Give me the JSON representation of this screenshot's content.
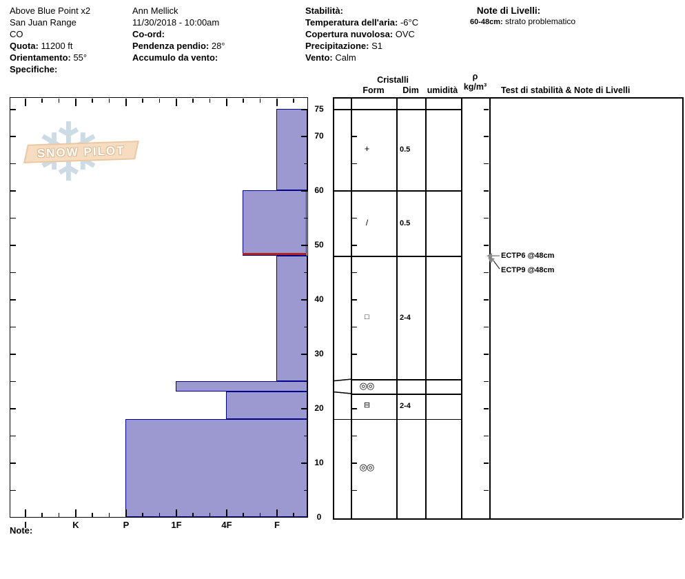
{
  "header": {
    "col1": [
      {
        "label": "",
        "value": "Above Blue Point x2"
      },
      {
        "label": "",
        "value": "San Juan Range"
      },
      {
        "label": "",
        "value": "CO"
      },
      {
        "label": "Quota:",
        "value": " 11200 ft"
      },
      {
        "label": "Orientamento:",
        "value": " 55°"
      },
      {
        "label": "Specifiche:",
        "value": ""
      }
    ],
    "col2": [
      {
        "label": "",
        "value": "Ann Mellick"
      },
      {
        "label": "",
        "value": "11/30/2018 - 10:00am"
      },
      {
        "label": "Co-ord:",
        "value": ""
      },
      {
        "label": "Pendenza pendio:",
        "value": " 28°"
      },
      {
        "label": "Accumulo da vento:",
        "value": ""
      }
    ],
    "col3": [
      {
        "label": "Stabilità:",
        "value": ""
      },
      {
        "label": "Temperatura dell'aria:",
        "value": " -6°C"
      },
      {
        "label": "Copertura nuvolosa:",
        "value": " OVC"
      },
      {
        "label": "Precipitazione:",
        "value": " S1"
      },
      {
        "label": "Vento:",
        "value": "  Calm"
      }
    ],
    "col4": {
      "title": "Note di Livelli:",
      "note_label": "60-48cm:",
      "note_value": " strato problematico"
    }
  },
  "watermark": {
    "text": "SNOW PILOT",
    "snowflake_icon": "❄"
  },
  "bottom_note_label": "Note:",
  "table_headers": {
    "cristalli": "Cristalli",
    "form": "Form",
    "dim": "Dim",
    "umidita": "umidità",
    "rho": "ρ",
    "rho_unit": "kg/m³",
    "tests": "Test di stabilità & Note di Livelli"
  },
  "chart_data": {
    "type": "snow-profile",
    "depth_axis": {
      "unit": "cm",
      "min": 0,
      "max": 75,
      "tick_step": 5,
      "label_ticks": [
        75,
        70,
        60,
        50,
        40,
        30,
        20,
        10,
        0
      ]
    },
    "hardness_axis": {
      "categories": [
        "I",
        "K",
        "P",
        "1F",
        "4F",
        "F"
      ],
      "minor_ticks_per_step": 3,
      "order_note": "hardness increases to the left"
    },
    "layers": [
      {
        "top_cm": 75,
        "bottom_cm": 60,
        "hardness": "F",
        "hardness_num": 1,
        "grain_form": "PP",
        "grain_symbol": "+",
        "size_mm": "0.5"
      },
      {
        "top_cm": 60,
        "bottom_cm": 48,
        "hardness": "4F-",
        "hardness_num": 1.67,
        "grain_form": "DF",
        "grain_symbol": "/",
        "size_mm": "0.5",
        "problem_layer_bottom": true
      },
      {
        "top_cm": 48,
        "bottom_cm": 25,
        "hardness": "F",
        "hardness_num": 1,
        "grain_form": "FC",
        "grain_symbol": "□",
        "size_mm": "2-4"
      },
      {
        "top_cm": 25,
        "bottom_cm": 23,
        "hardness": "1F",
        "hardness_num": 3,
        "grain_form": "MFcl",
        "grain_symbol": "◎◎",
        "size_mm": ""
      },
      {
        "top_cm": 23,
        "bottom_cm": 18,
        "hardness": "4F",
        "hardness_num": 2,
        "grain_form": "FCxr",
        "grain_symbol": "⊟",
        "size_mm": "2-4"
      },
      {
        "top_cm": 18,
        "bottom_cm": 0,
        "hardness": "P",
        "hardness_num": 4,
        "grain_form": "MFcl",
        "grain_symbol": "◎◎",
        "size_mm": ""
      }
    ],
    "problem_line_depth_cm": 48,
    "stability_tests": [
      {
        "text": "ECTP6 @48cm",
        "depth_cm": 48
      },
      {
        "text": "ECTP9 @48cm",
        "depth_cm": 48
      }
    ],
    "colors": {
      "layer_fill": "#9b99d0",
      "layer_border": "#00008b",
      "problem_line": "#b22222",
      "arrow": "#8a8a8a",
      "banner": "#f6ddc1",
      "snowflake": "#cddbe5"
    }
  }
}
